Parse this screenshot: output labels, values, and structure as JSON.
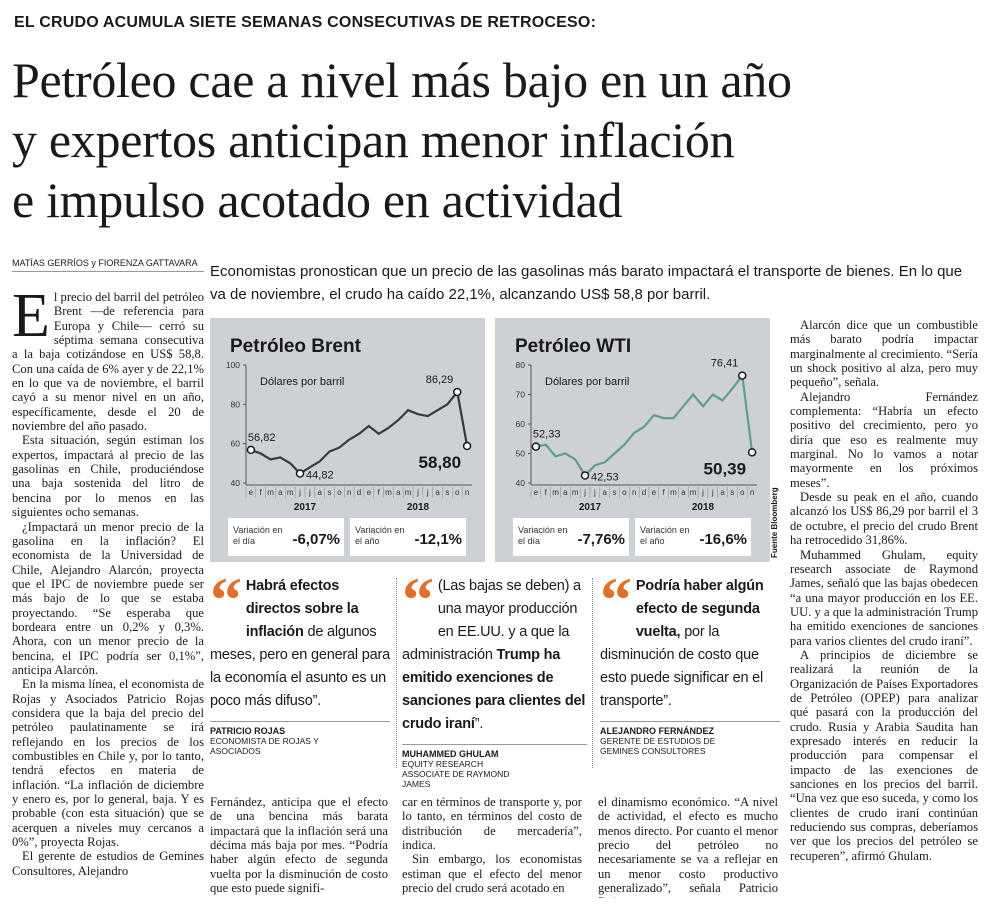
{
  "kicker": "EL CRUDO ACUMULA SIETE SEMANAS CONSECUTIVAS DE RETROCESO:",
  "headline": [
    "Petróleo cae a nivel más bajo en un año",
    "y expertos anticipan menor inflación",
    "e impulso acotado en actividad"
  ],
  "byline": "MATÍAS GERRÍOS y FIORENZA GATTAVARA",
  "dek": "Economistas pronostican que un precio de las gasolinas más barato impactará el transporte de bienes. En lo que va de noviembre, el crudo ha caído 22,1%, alcanzando US$ 58,8 por barril.",
  "drop_cap": "E",
  "columns": [
    [
      "l precio del barril del petróleo Brent —de referencia para Europa y Chile— cerró su séptima semana consecutiva a la baja cotizándose en US$ 58,8. Con una caída de 6% ayer y de 22,1% en lo que va de noviembre, el barril cayó a su menor nivel en un año, específicamente, desde el 20 de noviembre del año pasado.",
      "Esta situación, según estiman los expertos, impactará al precio de las gasolinas en Chile, produciéndose una baja sostenida del litro de bencina por lo menos en las siguientes ocho semanas.",
      "¿Impactará un menor precio de la gasolina en la inflación? El economista de la Universidad de Chile, Alejandro Alarcón, proyecta que el IPC de noviembre puede ser más bajo de lo que se estaba proyectando. “Se esperaba que bordeara entre un 0,2% y 0,3%. Ahora, con un menor precio de la bencina, el IPC podría ser 0,1%”, anticipa Alarcón.",
      "En la misma línea, el economista de Rojas y Asociados Patricio Rojas considera que la baja del precio del petróleo paulatinamente se irá reflejando en los precios de los combustibles en Chile y, por lo tanto, tendrá efectos en materia de inflación. “La inflación de diciembre y enero es, por lo general, baja. Y es probable (con esta situación) que se acerquen a niveles muy cercanos a 0%”, proyecta Rojas.",
      "El gerente de estudios de Gemines Consultores, Alejandro"
    ],
    [
      "Fernández, anticipa que el efecto de una bencina más barata impactará que la inflación será una décima más baja por mes. “Podría haber algún efecto de segunda vuelta por la disminución de costo que esto puede signifi-"
    ],
    [
      "car en términos de transporte y, por lo tanto, en términos del costo de distribución de mercadería”, indica.",
      "Sin embargo, los economistas estiman que el efecto del menor precio del crudo será acotado en"
    ],
    [
      "el dinamismo económico. “A nivel de actividad, el efecto es mucho menos directo. Por cuanto el menor precio del petróleo no necesariamente se va a reflejar en un menor costo productivo generalizado”, señala Patricio Rojas."
    ],
    [
      "Alarcón dice que un combustible más barato podría impactar marginalmente al crecimiento. “Sería un shock positivo al alza, pero muy pequeño”, señala.",
      "Alejandro Fernández complementa: “Habría un efecto positivo del crecimiento, pero yo diría que eso es realmente muy marginal. No lo vamos a notar mayormente en los próximos meses”.",
      "Desde su peak en el año, cuando alcanzó los US$ 86,29 por barril el 3 de octubre, el precio del crudo Brent ha retrocedido 31,86%.",
      "Muhammed Ghulam, equity research associate de Raymond James, señaló que las bajas obedecen “a una mayor producción en los EE. UU. y a que la administración Trump ha emitido exenciones de sanciones para varios clientes del crudo iraní”.",
      "A principios de diciembre se realizará la reunión de la Organización de Países Exportadores de Petróleo (OPEP) para analizar qué pasará con la producción del crudo. Rusia y Arabia Saudita han expresado interés en reducir la producción para compensar el impacto de las exenciones de sanciones en los precios del barril. “Una vez que eso suceda, y como los clientes de crudo iraní continúan reduciendo sus compras, deberíamos ver que los precios del petróleo se recuperen”, afirmó Ghulam."
    ]
  ],
  "chart_data": [
    {
      "type": "line",
      "title": "Petróleo Brent",
      "subtitle": "Dólares por barril",
      "color": "#3a3a3a",
      "categories": [
        "e",
        "f",
        "m",
        "a",
        "m",
        "j",
        "j",
        "a",
        "s",
        "o",
        "n",
        "d",
        "e",
        "f",
        "m",
        "a",
        "m",
        "j",
        "j",
        "a",
        "s",
        "o",
        "n"
      ],
      "year_labels": [
        "2017",
        "2018"
      ],
      "values": [
        56.82,
        55,
        52,
        53,
        50,
        44.82,
        48,
        51,
        56,
        58,
        62,
        65,
        69,
        65,
        68,
        72,
        77,
        75,
        74,
        77,
        80,
        86.29,
        58.8
      ],
      "value_labels": [
        "56,82",
        null,
        null,
        null,
        null,
        "44,82",
        null,
        null,
        null,
        null,
        null,
        null,
        null,
        null,
        null,
        null,
        null,
        null,
        null,
        null,
        null,
        "86,29",
        "58,80"
      ],
      "ylim": [
        40,
        100
      ],
      "yticks": [
        40,
        60,
        80,
        100
      ],
      "stats": [
        {
          "label": "Variación en el día",
          "value": "-6,07%"
        },
        {
          "label": "Variación en el año",
          "value": "-12,1%"
        }
      ]
    },
    {
      "type": "line",
      "title": "Petróleo WTI",
      "subtitle": "Dólares por barril",
      "color": "#5e9d91",
      "categories": [
        "e",
        "f",
        "m",
        "a",
        "m",
        "j",
        "j",
        "a",
        "s",
        "o",
        "n",
        "d",
        "e",
        "f",
        "m",
        "a",
        "m",
        "j",
        "j",
        "a",
        "s",
        "o",
        "n"
      ],
      "year_labels": [
        "2017",
        "2018"
      ],
      "values": [
        52.33,
        53,
        49,
        50,
        48,
        42.53,
        46,
        47,
        50,
        53,
        57,
        59,
        63,
        62,
        62,
        66,
        70,
        66,
        70,
        68,
        72,
        76.41,
        50.39
      ],
      "value_labels": [
        "52,33",
        null,
        null,
        null,
        null,
        "42,53",
        null,
        null,
        null,
        null,
        null,
        null,
        null,
        null,
        null,
        null,
        null,
        null,
        null,
        null,
        null,
        "76,41",
        "50,39"
      ],
      "ylim": [
        40,
        80
      ],
      "yticks": [
        40,
        50,
        60,
        70,
        80
      ],
      "stats": [
        {
          "label": "Variación en el día",
          "value": "-7,76%"
        },
        {
          "label": "Variación en el año",
          "value": "-16,6%"
        }
      ]
    }
  ],
  "source": "Fuente Bloomberg",
  "quotes": [
    {
      "segments": [
        {
          "text": "Habrá efectos directos sobre la inflación",
          "bold": true
        },
        {
          "text": " de algunos meses, pero en general para la economía el asunto es un poco más difuso”.",
          "bold": false
        }
      ],
      "name": "PATRICIO ROJAS",
      "role": "ECONOMISTA DE ROJAS Y ASOCIADOS"
    },
    {
      "segments": [
        {
          "text": "(Las bajas se deben) a una mayor producción en EE.UU. y a que la administración ",
          "bold": false
        },
        {
          "text": "Trump ha emitido exenciones de sanciones para clientes del crudo iraní",
          "bold": true
        },
        {
          "text": "”.",
          "bold": false
        }
      ],
      "name": "MUHAMMED GHULAM",
      "role": "EQUITY RESEARCH ASSOCIATE DE RAYMOND JAMES"
    },
    {
      "segments": [
        {
          "text": "Podría haber algún efecto de segunda vuelta,",
          "bold": true
        },
        {
          "text": " por la disminución de costo que esto puede significar en el transporte”.",
          "bold": false
        }
      ],
      "name": "ALEJANDRO FERNÁNDEZ",
      "role": "GERENTE DE ESTUDIOS DE GEMINES CONSULTORES"
    }
  ]
}
